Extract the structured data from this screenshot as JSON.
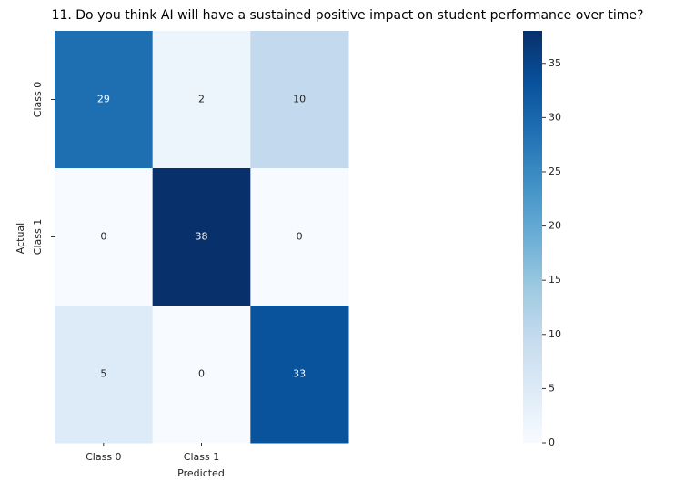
{
  "chart_data": {
    "type": "heatmap",
    "title": "11. Do you think AI will have a sustained positive impact on student performance over time?",
    "x_label": "Predicted",
    "y_label": "Actual",
    "x_categories": [
      "Class 0",
      "Class 1",
      null
    ],
    "y_categories": [
      "Class 0",
      "Class 1",
      null
    ],
    "values": [
      [
        29,
        2,
        10
      ],
      [
        0,
        38,
        0
      ],
      [
        5,
        0,
        33
      ]
    ],
    "zlim": [
      0,
      38
    ],
    "zticks": [
      0,
      5,
      10,
      15,
      20,
      25,
      30,
      35
    ],
    "colorscale": [
      "#f7fbff",
      "#deebf7",
      "#c6dbef",
      "#9ecae1",
      "#6baed6",
      "#4292c6",
      "#2171b5",
      "#08519c",
      "#08306b"
    ]
  }
}
